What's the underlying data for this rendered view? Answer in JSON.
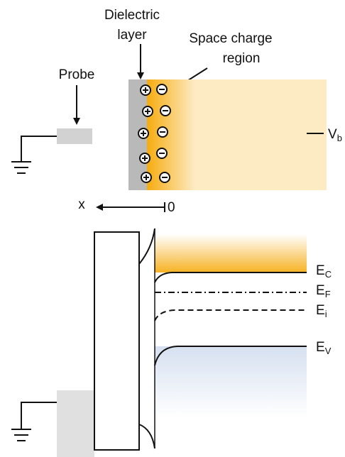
{
  "top": {
    "dielectric": [
      "Dielectric",
      "layer"
    ],
    "space_charge": [
      "Space charge",
      "region"
    ],
    "probe": "Probe",
    "bias": {
      "main": "V",
      "sub": "b"
    },
    "axis": {
      "x": "x",
      "origin": "0"
    }
  },
  "bands": {
    "ec": {
      "main": "E",
      "sub": "C"
    },
    "ef": {
      "main": "E",
      "sub": "F"
    },
    "ei": {
      "main": "E",
      "sub": "i"
    },
    "ev": {
      "main": "E",
      "sub": "V"
    }
  }
}
